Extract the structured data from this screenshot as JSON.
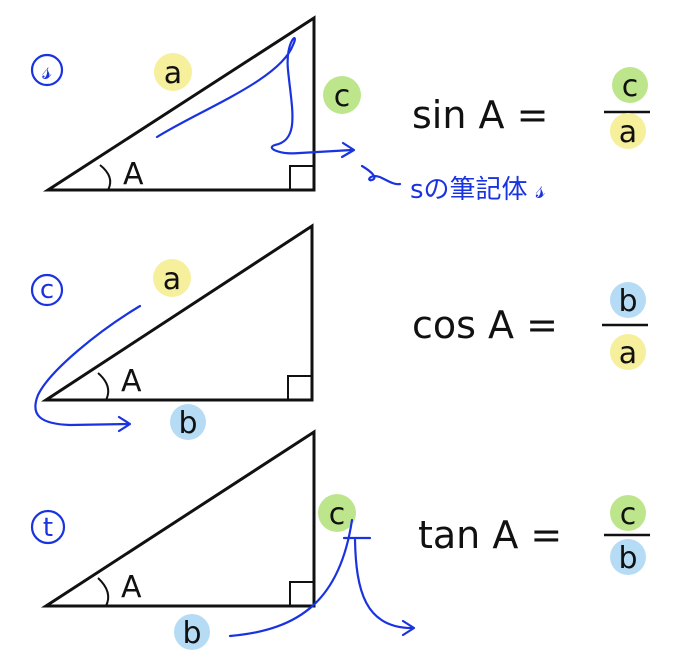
{
  "colors": {
    "a": "#f6ef9c",
    "b": "#b5dcf4",
    "c": "#bde68c",
    "ink": "#1a33e0"
  },
  "rows": [
    {
      "marker": "𝓈",
      "angle": "A",
      "side1": "a",
      "side2": "c",
      "equation": "sin A =",
      "numerator": "c",
      "denominator": "a",
      "note": "sの筆記体 𝓈"
    },
    {
      "marker": "c",
      "angle": "A",
      "side1": "a",
      "side2": "b",
      "equation": "cos A =",
      "numerator": "b",
      "denominator": "a"
    },
    {
      "marker": "t",
      "angle": "A",
      "side1": "c",
      "side2": "b",
      "equation": "tan A =",
      "numerator": "c",
      "denominator": "b"
    }
  ]
}
